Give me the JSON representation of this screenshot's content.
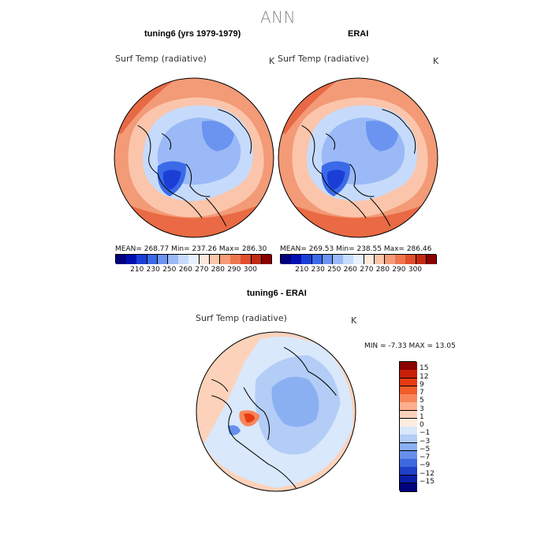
{
  "figure": {
    "title": "ANN"
  },
  "panels": [
    {
      "title": "tuning6 (yrs 1979-1979)",
      "variable": "Surf Temp (radiative)",
      "unit": "K",
      "stats": "MEAN=  268.77    Min=  237.26    Max=  286.30"
    },
    {
      "title": "ERAI",
      "variable": "Surf Temp (radiative)",
      "unit": "K",
      "stats": "MEAN=  269.53    Min=  238.55    Max=  286.46"
    },
    {
      "title": "tuning6 - ERAI",
      "variable": "Surf Temp (radiative)",
      "unit": "K",
      "stats": "MIN =    -7.33   MAX =    13.05"
    }
  ],
  "colorbar_top": {
    "labels": [
      "210",
      "230",
      "250",
      "260",
      "270",
      "280",
      "290",
      "300"
    ],
    "colors": [
      "#00007f",
      "#0010b0",
      "#1b3fd6",
      "#3a6ae8",
      "#6b94f0",
      "#9ab9f6",
      "#c6dbfb",
      "#e8f1fe",
      "#fde8dc",
      "#fbc5ab",
      "#f59c78",
      "#ee764f",
      "#e14f2e",
      "#c32a14",
      "#8b0000"
    ]
  },
  "colorbar_diff": {
    "labels": [
      "15",
      "12",
      "9",
      "7",
      "5",
      "3",
      "1",
      "0",
      "−1",
      "−3",
      "−5",
      "−7",
      "−9",
      "−12",
      "−15"
    ],
    "colors": [
      "#8b0000",
      "#c81e0a",
      "#e83b12",
      "#f25d2a",
      "#f7865a",
      "#fbaf8c",
      "#fdd2bb",
      "#fdece0",
      "#d9e8fb",
      "#b3cdf7",
      "#8bb0f2",
      "#6690eb",
      "#3f68de",
      "#1f40c7",
      "#0a1ea8",
      "#00007f"
    ]
  }
}
